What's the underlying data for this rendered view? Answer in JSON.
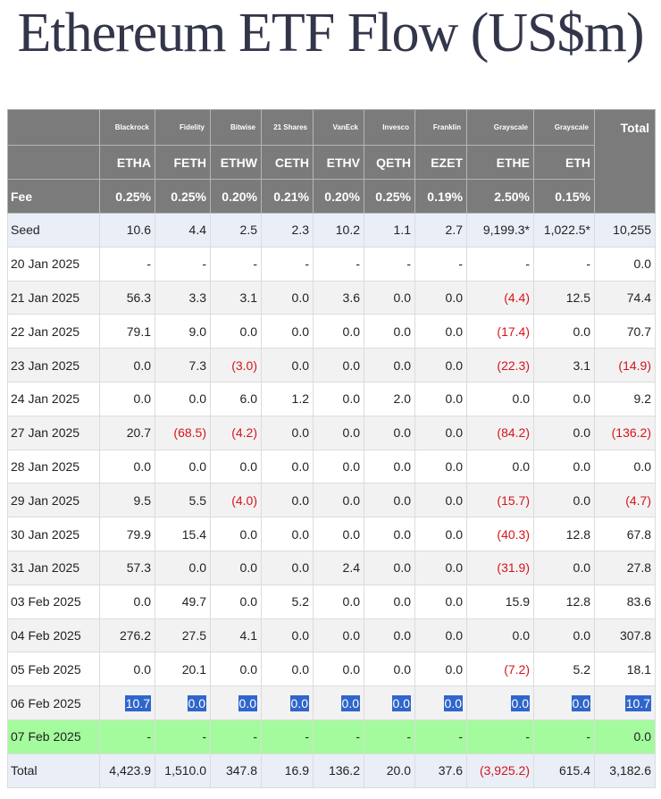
{
  "title": "Ethereum ETF Flow (US$m)",
  "issuers": [
    "Blackrock",
    "Fidelity",
    "Bitwise",
    "21 Shares",
    "VanEck",
    "Invesco",
    "Franklin",
    "Grayscale",
    "Grayscale"
  ],
  "total_header": "Total",
  "tickers": [
    "ETHA",
    "FETH",
    "ETHW",
    "CETH",
    "ETHV",
    "QETH",
    "EZET",
    "ETHE",
    "ETH"
  ],
  "fee_label": "Fee",
  "fees": [
    "0.25%",
    "0.25%",
    "0.20%",
    "0.21%",
    "0.20%",
    "0.25%",
    "0.19%",
    "2.50%",
    "0.15%"
  ],
  "rows": [
    {
      "date": "Seed",
      "cells": [
        "10.6",
        "4.4",
        "2.5",
        "2.3",
        "10.2",
        "1.1",
        "2.7",
        "9,199.3*",
        "1,022.5*",
        "10,255"
      ]
    },
    {
      "date": "20 Jan 2025",
      "cells": [
        "-",
        "-",
        "-",
        "-",
        "-",
        "-",
        "-",
        "-",
        "-",
        "0.0"
      ]
    },
    {
      "date": "21 Jan 2025",
      "cells": [
        "56.3",
        "3.3",
        "3.1",
        "0.0",
        "3.6",
        "0.0",
        "0.0",
        "(4.4)",
        "12.5",
        "74.4"
      ]
    },
    {
      "date": "22 Jan 2025",
      "cells": [
        "79.1",
        "9.0",
        "0.0",
        "0.0",
        "0.0",
        "0.0",
        "0.0",
        "(17.4)",
        "0.0",
        "70.7"
      ]
    },
    {
      "date": "23 Jan 2025",
      "cells": [
        "0.0",
        "7.3",
        "(3.0)",
        "0.0",
        "0.0",
        "0.0",
        "0.0",
        "(22.3)",
        "3.1",
        "(14.9)"
      ]
    },
    {
      "date": "24 Jan 2025",
      "cells": [
        "0.0",
        "0.0",
        "6.0",
        "1.2",
        "0.0",
        "2.0",
        "0.0",
        "0.0",
        "0.0",
        "9.2"
      ]
    },
    {
      "date": "27 Jan 2025",
      "cells": [
        "20.7",
        "(68.5)",
        "(4.2)",
        "0.0",
        "0.0",
        "0.0",
        "0.0",
        "(84.2)",
        "0.0",
        "(136.2)"
      ]
    },
    {
      "date": "28 Jan 2025",
      "cells": [
        "0.0",
        "0.0",
        "0.0",
        "0.0",
        "0.0",
        "0.0",
        "0.0",
        "0.0",
        "0.0",
        "0.0"
      ]
    },
    {
      "date": "29 Jan 2025",
      "cells": [
        "9.5",
        "5.5",
        "(4.0)",
        "0.0",
        "0.0",
        "0.0",
        "0.0",
        "(15.7)",
        "0.0",
        "(4.7)"
      ]
    },
    {
      "date": "30 Jan 2025",
      "cells": [
        "79.9",
        "15.4",
        "0.0",
        "0.0",
        "0.0",
        "0.0",
        "0.0",
        "(40.3)",
        "12.8",
        "67.8"
      ]
    },
    {
      "date": "31 Jan 2025",
      "cells": [
        "57.3",
        "0.0",
        "0.0",
        "0.0",
        "2.4",
        "0.0",
        "0.0",
        "(31.9)",
        "0.0",
        "27.8"
      ]
    },
    {
      "date": "03 Feb 2025",
      "cells": [
        "0.0",
        "49.7",
        "0.0",
        "5.2",
        "0.0",
        "0.0",
        "0.0",
        "15.9",
        "12.8",
        "83.6"
      ]
    },
    {
      "date": "04 Feb 2025",
      "cells": [
        "276.2",
        "27.5",
        "4.1",
        "0.0",
        "0.0",
        "0.0",
        "0.0",
        "0.0",
        "0.0",
        "307.8"
      ]
    },
    {
      "date": "05 Feb 2025",
      "cells": [
        "0.0",
        "20.1",
        "0.0",
        "0.0",
        "0.0",
        "0.0",
        "0.0",
        "(7.2)",
        "5.2",
        "18.1"
      ]
    },
    {
      "date": "06 Feb 2025",
      "cells": [
        "10.7",
        "0.0",
        "0.0",
        "0.0",
        "0.0",
        "0.0",
        "0.0",
        "0.0",
        "0.0",
        "10.7"
      ]
    },
    {
      "date": "07 Feb 2025",
      "cells": [
        "-",
        "-",
        "-",
        "-",
        "-",
        "-",
        "-",
        "-",
        "-",
        "0.0"
      ]
    }
  ],
  "total_row": {
    "date": "Total",
    "cells": [
      "4,423.9",
      "1,510.0",
      "347.8",
      "16.9",
      "136.2",
      "20.0",
      "37.6",
      "(3,925.2)",
      "615.4",
      "3,182.6"
    ]
  },
  "colors": {
    "header_bg": "#7b7b7b",
    "seed_bg": "#e9eef7",
    "stripe_bg": "#f2f2f2",
    "highlight_bg": "#2f66cc",
    "latest_row_bg": "#a4fb9d",
    "negative_text": "#d5141b"
  }
}
